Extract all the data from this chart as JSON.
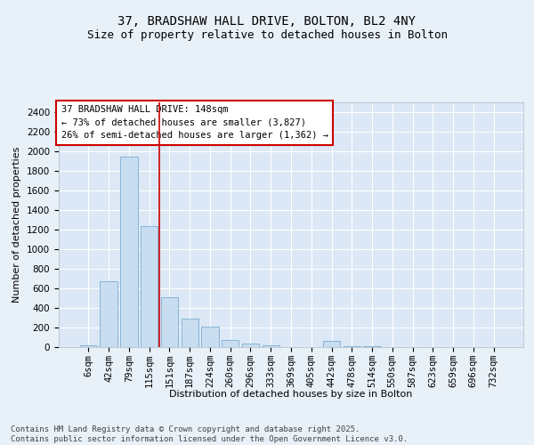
{
  "title_line1": "37, BRADSHAW HALL DRIVE, BOLTON, BL2 4NY",
  "title_line2": "Size of property relative to detached houses in Bolton",
  "xlabel": "Distribution of detached houses by size in Bolton",
  "ylabel": "Number of detached properties",
  "categories": [
    "6sqm",
    "42sqm",
    "79sqm",
    "115sqm",
    "151sqm",
    "187sqm",
    "224sqm",
    "260sqm",
    "296sqm",
    "333sqm",
    "369sqm",
    "405sqm",
    "442sqm",
    "478sqm",
    "514sqm",
    "550sqm",
    "587sqm",
    "623sqm",
    "659sqm",
    "696sqm",
    "732sqm"
  ],
  "values": [
    18,
    675,
    1950,
    1240,
    510,
    290,
    205,
    75,
    40,
    20,
    0,
    0,
    65,
    10,
    10,
    0,
    0,
    0,
    0,
    0,
    0
  ],
  "bar_color": "#c9ddf0",
  "bar_edge_color": "#7aadd4",
  "vline_x": 3.5,
  "vline_color": "#cc0000",
  "annotation_text": "37 BRADSHAW HALL DRIVE: 148sqm\n← 73% of detached houses are smaller (3,827)\n26% of semi-detached houses are larger (1,362) →",
  "annotation_box_facecolor": "#ffffff",
  "annotation_box_edgecolor": "#cc0000",
  "ylim": [
    0,
    2500
  ],
  "yticks": [
    0,
    200,
    400,
    600,
    800,
    1000,
    1200,
    1400,
    1600,
    1800,
    2000,
    2200,
    2400
  ],
  "bg_color": "#dce8f5",
  "fig_bg_color": "#e8f0f8",
  "grid_color": "#ffffff",
  "footer_text": "Contains HM Land Registry data © Crown copyright and database right 2025.\nContains public sector information licensed under the Open Government Licence v3.0.",
  "title_fontsize": 10,
  "subtitle_fontsize": 9,
  "annotation_fontsize": 7.5,
  "ylabel_fontsize": 8,
  "xlabel_fontsize": 8,
  "footer_fontsize": 6.5,
  "tick_fontsize": 7.5
}
